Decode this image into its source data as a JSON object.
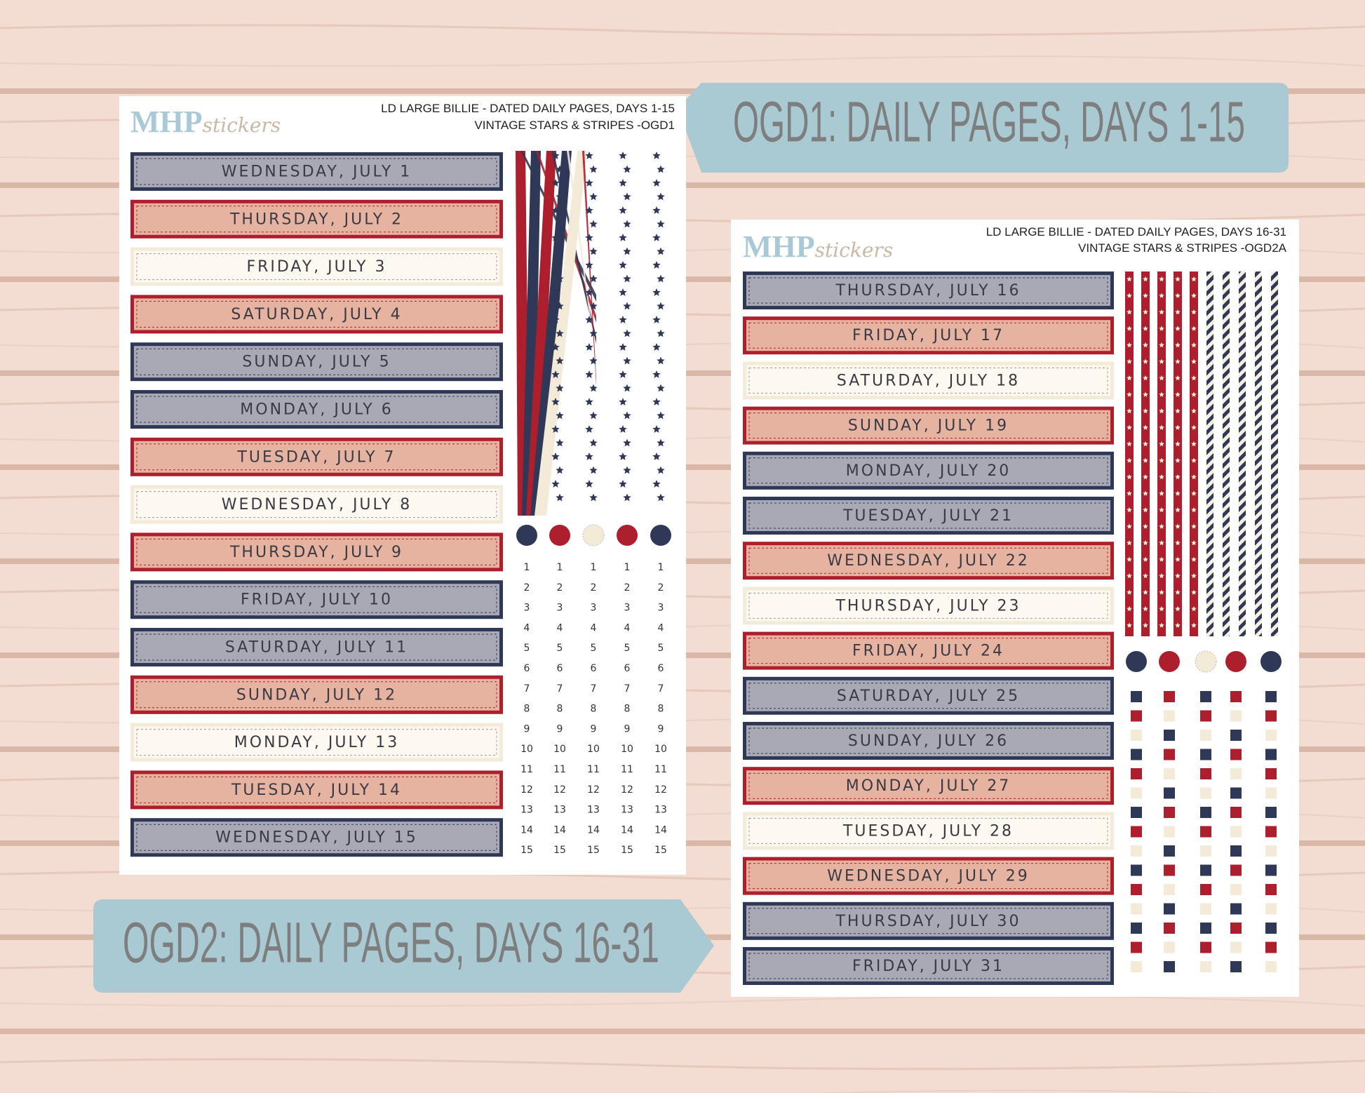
{
  "banner_top": "OGD1: DAILY PAGES, DAYS 1-15",
  "banner_bottom": "OGD2: DAILY PAGES, DAYS 16-31",
  "sheets": [
    {
      "logo": {
        "brand": "MHP",
        "script": "stickers"
      },
      "title_lines": [
        "LD LARGE BILLIE  -  DATED DAILY PAGES, DAYS 1-15",
        "VINTAGE STARS & STRIPES -OGD1"
      ],
      "labels": [
        {
          "text": "WEDNESDAY, JULY 1",
          "style": "navy"
        },
        {
          "text": "THURSDAY, JULY 2",
          "style": "red"
        },
        {
          "text": "FRIDAY, JULY 3",
          "style": "cream"
        },
        {
          "text": "SATURDAY, JULY 4",
          "style": "red"
        },
        {
          "text": "SUNDAY, JULY 5",
          "style": "navy"
        },
        {
          "text": "MONDAY, JULY 6",
          "style": "navy"
        },
        {
          "text": "TUESDAY, JULY 7",
          "style": "red"
        },
        {
          "text": "WEDNESDAY, JULY 8",
          "style": "cream"
        },
        {
          "text": "THURSDAY, JULY 9",
          "style": "red"
        },
        {
          "text": "FRIDAY, JULY 10",
          "style": "navy"
        },
        {
          "text": "SATURDAY, JULY 11",
          "style": "navy"
        },
        {
          "text": "SUNDAY, JULY 12",
          "style": "red"
        },
        {
          "text": "MONDAY, JULY 13",
          "style": "cream"
        },
        {
          "text": "TUESDAY, JULY 14",
          "style": "red"
        },
        {
          "text": "WEDNESDAY, JULY 15",
          "style": "navy"
        }
      ],
      "numbers": [
        1,
        2,
        3,
        4,
        5,
        6,
        7,
        8,
        9,
        10,
        11,
        12,
        13,
        14,
        15
      ]
    },
    {
      "logo": {
        "brand": "MHP",
        "script": "stickers"
      },
      "title_lines": [
        "LD LARGE BILLIE - DATED DAILY PAGES, DAYS 16-31",
        "VINTAGE STARS & STRIPES -OGD2A"
      ],
      "labels": [
        {
          "text": "THURSDAY, JULY 16",
          "style": "navy"
        },
        {
          "text": "FRIDAY, JULY 17",
          "style": "red"
        },
        {
          "text": "SATURDAY, JULY 18",
          "style": "cream"
        },
        {
          "text": "SUNDAY, JULY 19",
          "style": "red"
        },
        {
          "text": "MONDAY, JULY 20",
          "style": "navy"
        },
        {
          "text": "TUESDAY, JULY 21",
          "style": "navy"
        },
        {
          "text": "WEDNESDAY, JULY 22",
          "style": "red"
        },
        {
          "text": "THURSDAY, JULY 23",
          "style": "cream"
        },
        {
          "text": "FRIDAY, JULY 24",
          "style": "red"
        },
        {
          "text": "SATURDAY, JULY 25",
          "style": "navy"
        },
        {
          "text": "SUNDAY, JULY 26",
          "style": "navy"
        },
        {
          "text": "MONDAY, JULY 27",
          "style": "red"
        },
        {
          "text": "TUESDAY, JULY 28",
          "style": "cream"
        },
        {
          "text": "WEDNESDAY, JULY 29",
          "style": "red"
        },
        {
          "text": "THURSDAY, JULY 30",
          "style": "navy"
        },
        {
          "text": "FRIDAY, JULY 31",
          "style": "navy"
        }
      ]
    }
  ]
}
